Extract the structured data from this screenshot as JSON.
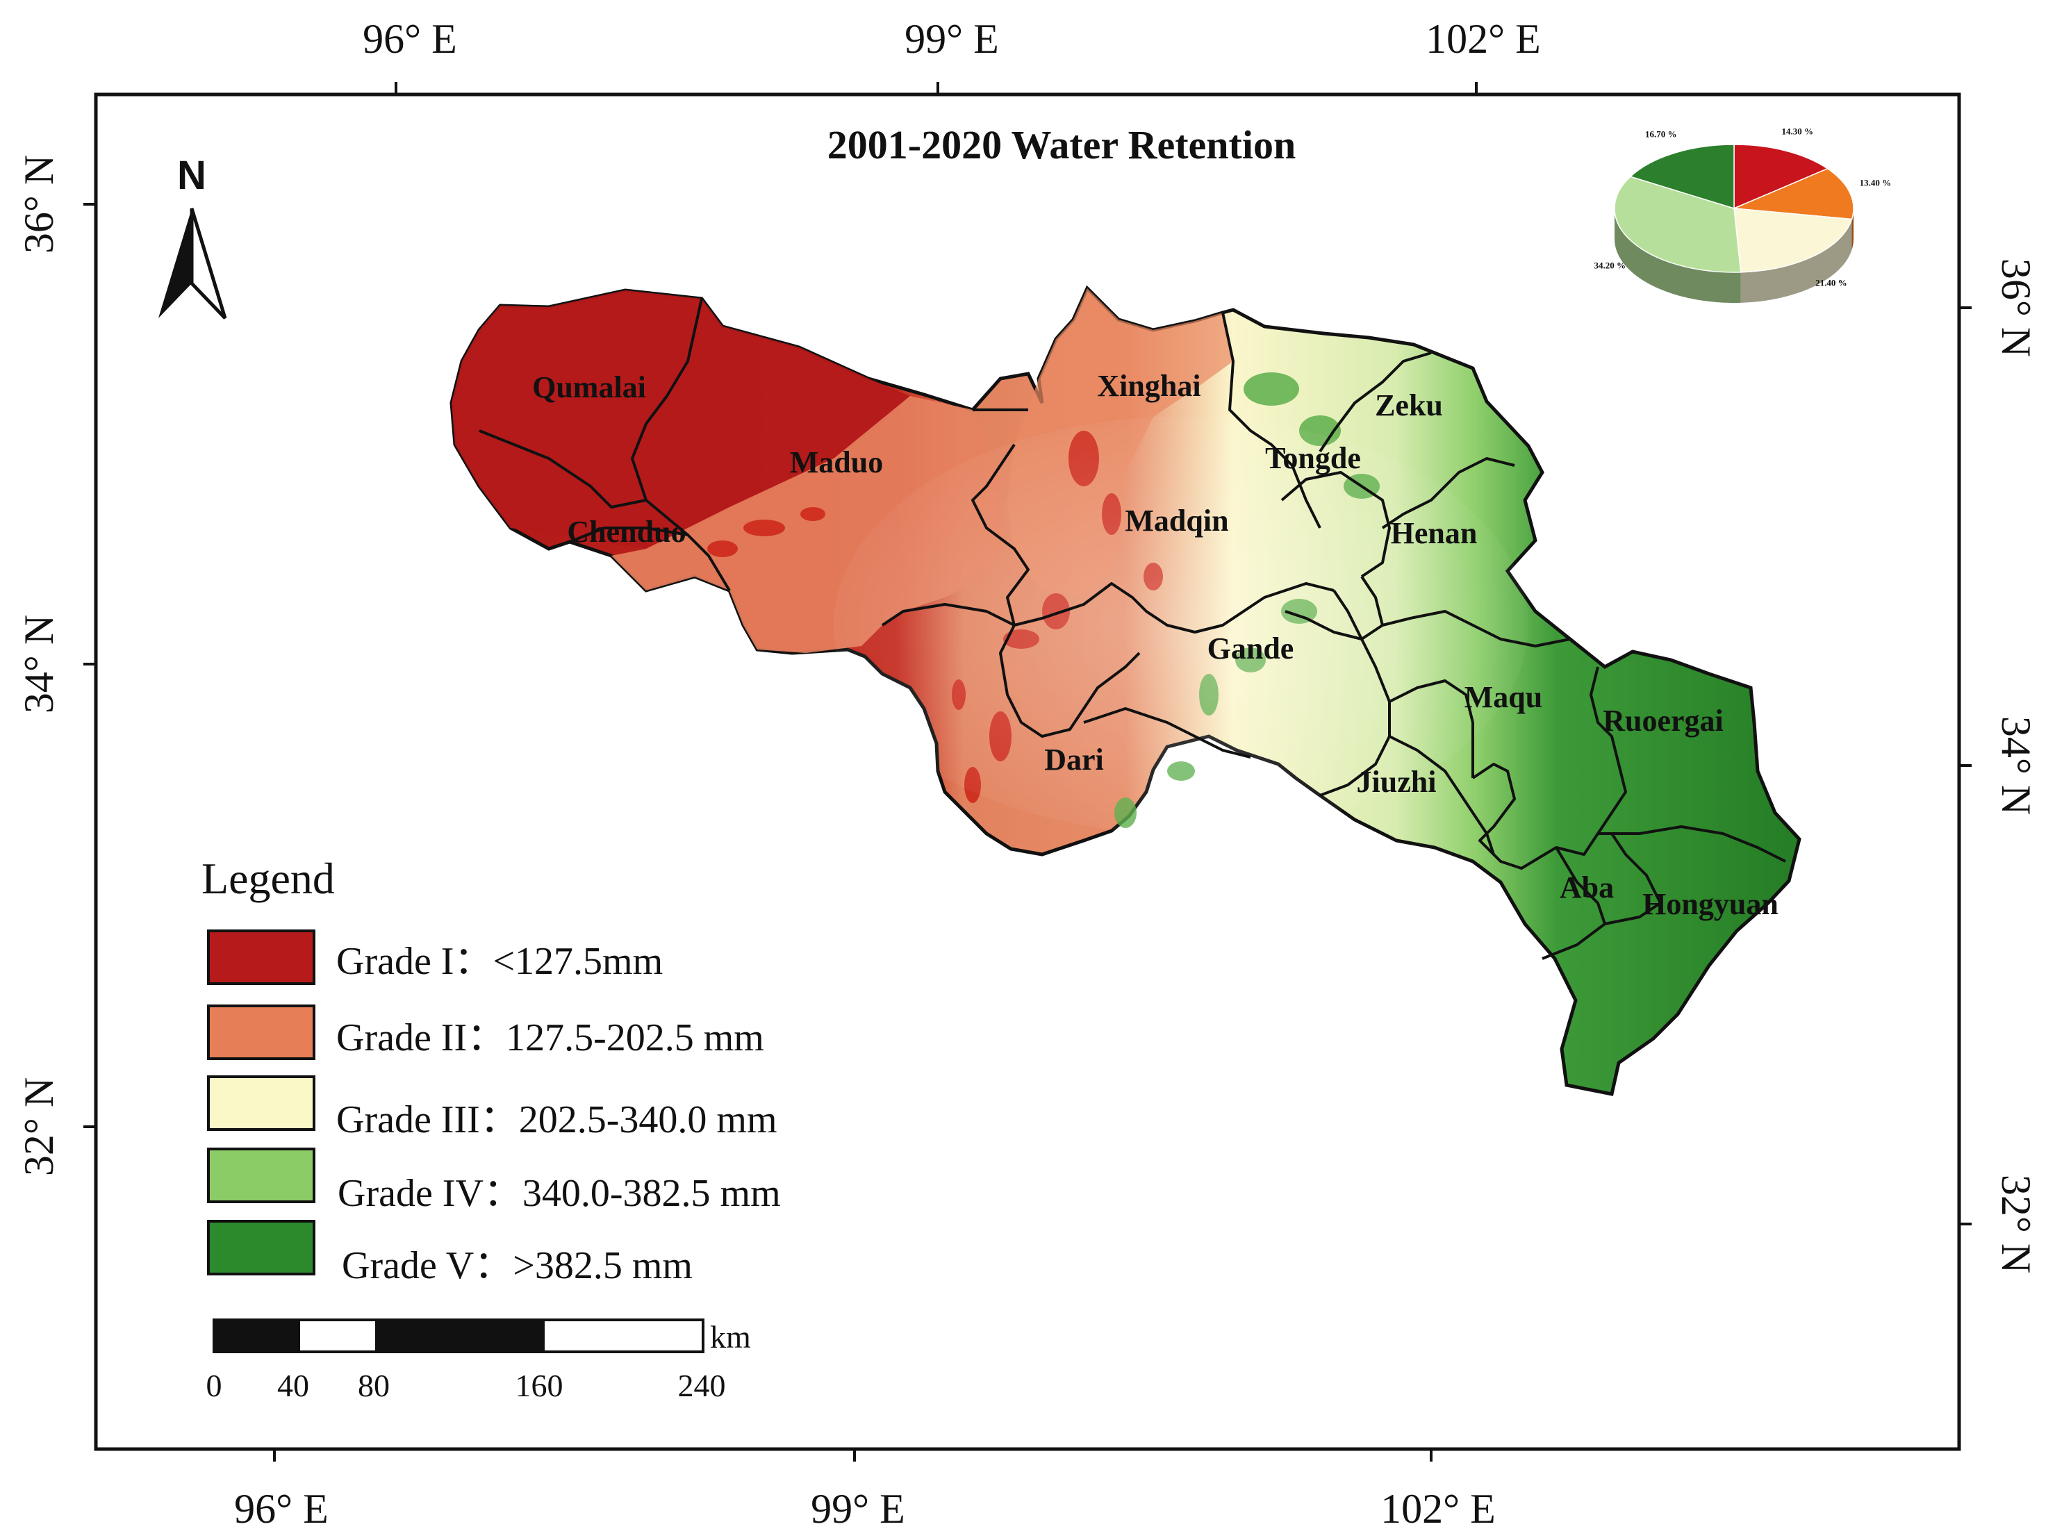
{
  "map": {
    "title": "2001-2020 Water Retention",
    "north_label": "N",
    "graticule": {
      "top": [
        "96° E",
        "99° E",
        "102° E"
      ],
      "bottom": [
        "96° E",
        "99° E",
        "102° E"
      ],
      "left": [
        "36° N",
        "34° N",
        "32° N"
      ],
      "right": [
        "36° N",
        "34° N",
        "32° N"
      ]
    },
    "counties": [
      "Qumalai",
      "Maduo",
      "Chenduo",
      "Xinghai",
      "Zeku",
      "Tongde",
      "Madqin",
      "Henan",
      "Gande",
      "Maqu",
      "Ruoergai",
      "Dari",
      "Jiuzhi",
      "Aba",
      "Hongyuan"
    ]
  },
  "legend": {
    "title": "Legend",
    "items": [
      {
        "label": "Grade I：<127.5mm",
        "color": "#b71a1a"
      },
      {
        "label": "Grade II：127.5-202.5 mm",
        "color": "#e67f58"
      },
      {
        "label": "Grade III：202.5-340.0 mm",
        "color": "#fbf8c8"
      },
      {
        "label": "Grade IV：340.0-382.5 mm",
        "color": "#8ccc67"
      },
      {
        "label": "Grade V：>382.5 mm",
        "color": "#2c8a2c"
      }
    ]
  },
  "scalebar": {
    "unit": "km",
    "ticks": [
      "0",
      "40",
      "80",
      "160",
      "240"
    ]
  },
  "pie": {
    "labels": [
      "14.30 %",
      "13.40 %",
      "21.40 %",
      "34.20 %",
      "16.70 %"
    ],
    "values": [
      14.3,
      13.4,
      21.4,
      34.2,
      16.7
    ],
    "colors": [
      "#c8141c",
      "#ef7a20",
      "#fbf6d6",
      "#b5df9a",
      "#2c7f2c"
    ]
  }
}
